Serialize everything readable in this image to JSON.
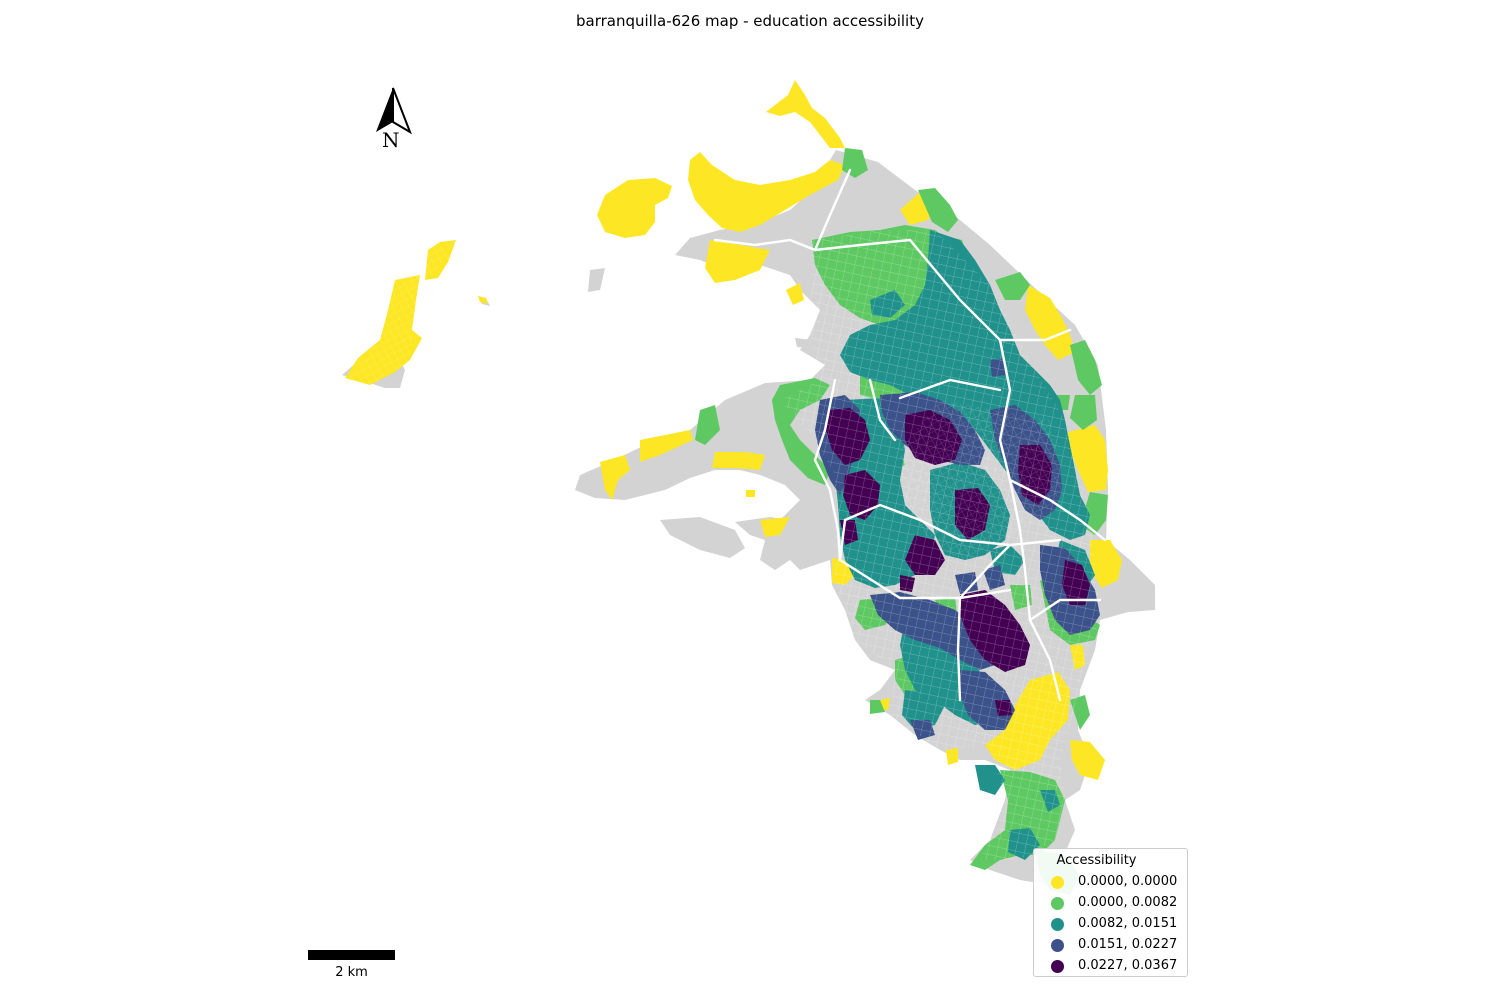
{
  "title": "barranquilla-626 map - education accessibility",
  "north_arrow": {
    "label": "N"
  },
  "scale_bar": {
    "label": "2 km"
  },
  "legend": {
    "title": "Accessibility",
    "items": [
      {
        "label": "0.0000, 0.0000",
        "color": "#fde725"
      },
      {
        "label": "0.0000, 0.0082",
        "color": "#5ec962"
      },
      {
        "label": "0.0082, 0.0151",
        "color": "#21918c"
      },
      {
        "label": "0.0151, 0.0227",
        "color": "#3b528b"
      },
      {
        "label": "0.0227, 0.0367",
        "color": "#440154"
      }
    ]
  },
  "colors": {
    "no_data": "#d3d3d3",
    "streets": "#ffffff"
  }
}
